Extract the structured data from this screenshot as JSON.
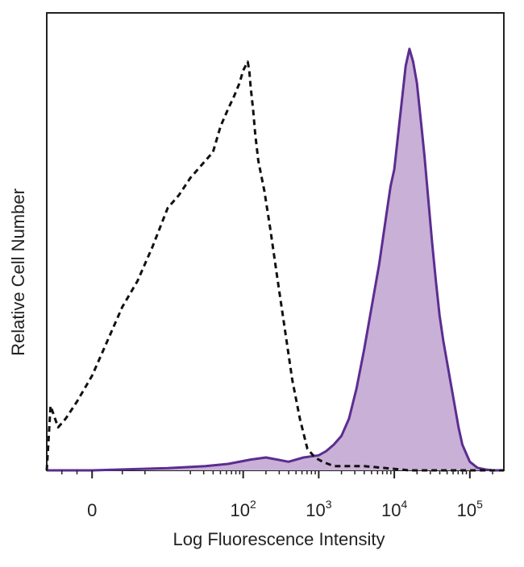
{
  "chart_data": {
    "type": "area",
    "title": "",
    "xlabel": "Log Fluorescence Intensity",
    "ylabel": "Relative Cell Number",
    "x_scale": "biexponential",
    "xlim_decades": [
      -0.6,
      5.45
    ],
    "ylim": [
      0,
      100
    ],
    "grid": false,
    "legend": "none",
    "colors": {
      "filled_series": "#5b2d91",
      "filled_series_fill": "#c9b0d6",
      "control_series": "#111111",
      "axis": "#222222"
    },
    "x_ticks": [
      {
        "base": "0",
        "exp": "",
        "pos": 0
      },
      {
        "base": "10",
        "exp": "2",
        "pos": 2
      },
      {
        "base": "10",
        "exp": "3",
        "pos": 3
      },
      {
        "base": "10",
        "exp": "4",
        "pos": 4
      },
      {
        "base": "10",
        "exp": "5",
        "pos": 5
      }
    ],
    "series": [
      {
        "style": "dashed",
        "fill": false,
        "x": [
          -0.6,
          -0.55,
          -0.45,
          -0.35,
          -0.2,
          0,
          0.2,
          0.4,
          0.6,
          0.8,
          1.0,
          1.15,
          1.3,
          1.45,
          1.6,
          1.7,
          1.8,
          1.88,
          1.95,
          2.0,
          2.03,
          2.06,
          2.08,
          2.1,
          2.13,
          2.16,
          2.2,
          2.28,
          2.36,
          2.45,
          2.55,
          2.65,
          2.75,
          2.85,
          2.95,
          3.05,
          3.2,
          3.6,
          4.2,
          5.0,
          5.45
        ],
        "y": [
          0,
          15,
          10,
          12,
          16,
          22,
          30,
          38,
          44,
          52,
          61,
          64,
          68,
          71,
          74,
          80,
          84,
          87,
          90,
          93,
          94,
          95,
          93,
          89,
          84,
          78,
          72,
          65,
          56,
          45,
          33,
          21,
          12,
          5,
          3,
          2,
          1,
          1,
          0,
          0,
          0
        ]
      },
      {
        "style": "solid",
        "fill": true,
        "x": [
          -0.6,
          0,
          1.0,
          1.5,
          1.8,
          2.1,
          2.3,
          2.45,
          2.6,
          2.8,
          3.0,
          3.1,
          3.2,
          3.3,
          3.4,
          3.5,
          3.6,
          3.7,
          3.8,
          3.9,
          3.95,
          4.0,
          4.05,
          4.1,
          4.15,
          4.2,
          4.25,
          4.3,
          4.33,
          4.36,
          4.4,
          4.45,
          4.5,
          4.55,
          4.6,
          4.65,
          4.7,
          4.75,
          4.8,
          4.85,
          4.9,
          4.95,
          5.0,
          5.1,
          5.2,
          5.3,
          5.45
        ],
        "y": [
          0,
          0,
          0.5,
          1,
          1.5,
          2.5,
          3,
          2.5,
          2,
          3,
          3.5,
          4.5,
          6,
          8,
          12,
          19,
          28,
          38,
          48,
          60,
          66,
          70,
          78,
          86,
          94,
          98,
          95,
          90,
          85,
          80,
          73,
          63,
          53,
          44,
          36,
          30,
          25,
          20,
          15,
          10,
          6,
          4,
          2,
          0.6,
          0.2,
          0,
          0
        ]
      }
    ]
  }
}
